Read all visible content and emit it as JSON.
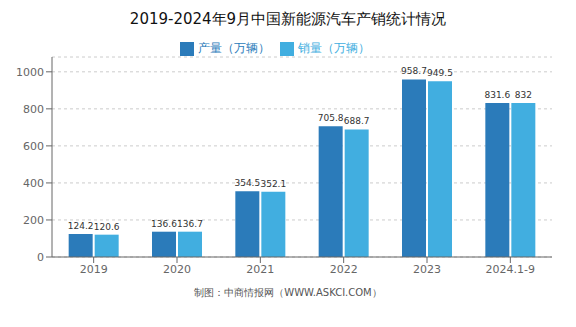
{
  "chart_data": {
    "type": "bar",
    "title": "2019-2024年9月中国新能源汽车产销统计情况",
    "categories": [
      "2019",
      "2020",
      "2021",
      "2022",
      "2023",
      "2024.1-9"
    ],
    "series": [
      {
        "name": "产量（万辆）",
        "color": "#2b7bba",
        "values": [
          124.2,
          136.6,
          354.5,
          705.8,
          958.7,
          831.6
        ]
      },
      {
        "name": "销量（万辆）",
        "color": "#41aee0",
        "values": [
          120.6,
          136.7,
          352.1,
          688.7,
          949.5,
          832.0
        ]
      }
    ],
    "ylim": [
      0,
      1080
    ],
    "yticks": [
      0,
      200,
      400,
      600,
      800,
      1000
    ],
    "grid": true,
    "data_labels": true,
    "legend": "top",
    "annotations": [
      "制图：中商情报网（WWW.ASKCI.COM）"
    ]
  }
}
